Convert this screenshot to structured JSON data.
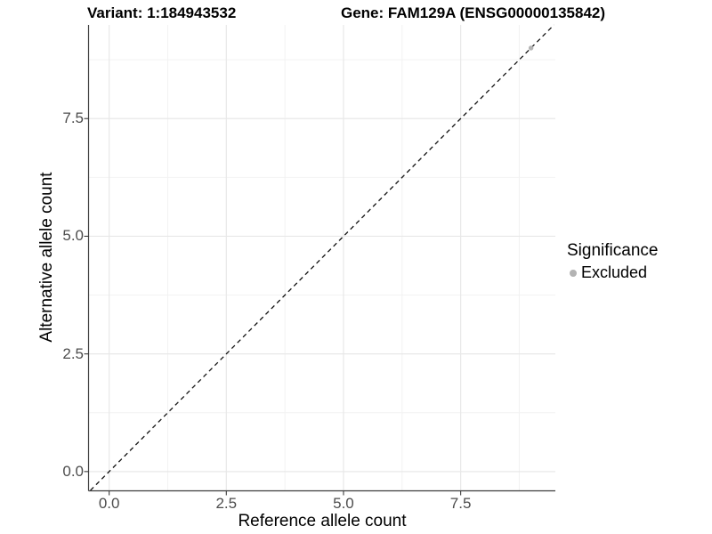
{
  "header": {
    "variant_title": "Variant: 1:184943532",
    "gene_title": "Gene: FAM129A (ENSG00000135842)"
  },
  "axes": {
    "x_label": "Reference allele count",
    "y_label": "Alternative allele count",
    "x_tick_labels": [
      "0.0",
      "2.5",
      "5.0",
      "7.5"
    ],
    "y_tick_labels": [
      "0.0",
      "2.5",
      "5.0",
      "7.5"
    ]
  },
  "legend": {
    "title": "Significance",
    "items": [
      {
        "label": "Excluded",
        "color": "#b3b3b3"
      }
    ]
  },
  "chart_data": {
    "type": "scatter",
    "title": "Variant: 1:184943532 / Gene: FAM129A (ENSG00000135842)",
    "xlabel": "Reference allele count",
    "ylabel": "Alternative allele count",
    "xlim": [
      -0.43,
      9.52
    ],
    "ylim": [
      -0.4,
      9.49
    ],
    "x_major_ticks": [
      0,
      2.5,
      5,
      7.5
    ],
    "y_major_ticks": [
      0,
      2.5,
      5,
      7.5
    ],
    "x_minor_ticks": [
      1.25,
      3.75,
      6.25,
      8.75
    ],
    "y_minor_ticks": [
      1.25,
      3.75,
      6.25,
      8.75
    ],
    "grid": "major+minor",
    "legend_position": "right",
    "series": [
      {
        "name": "Excluded",
        "color": "#b3b3b3",
        "points": [
          [
            9,
            9
          ]
        ]
      }
    ],
    "reference_line": {
      "kind": "identity y=x",
      "style": "dashed",
      "color": "#000000"
    }
  },
  "style": {
    "background": "#ffffff",
    "grid_major_color": "#e8e8e8",
    "grid_minor_color": "#f2f2f2",
    "axis_line_color": "#3c3c3c",
    "tick_label_color": "#4d4d4d",
    "point_color": "#b3b3b3",
    "dashed_line_color": "#111111"
  }
}
